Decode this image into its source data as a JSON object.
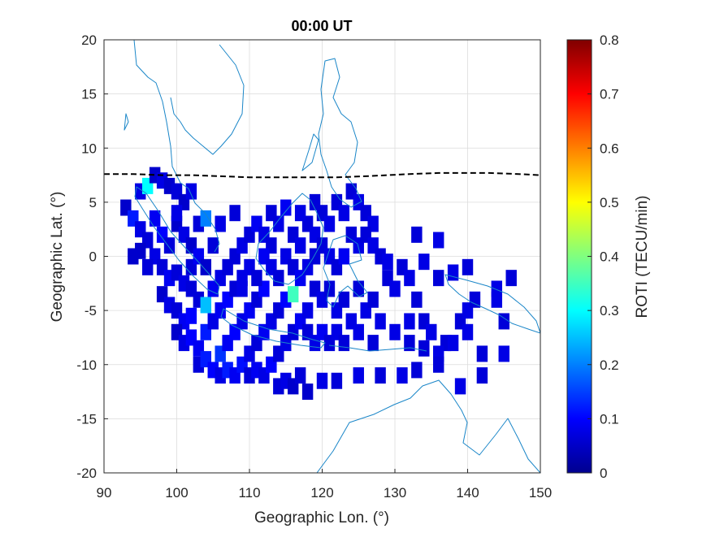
{
  "chart_data": {
    "type": "heatmap",
    "title": "00:00 UT",
    "xlabel": "Geographic Lon. (°)",
    "ylabel": "Geographic Lat. (°)",
    "xlim": [
      90,
      150
    ],
    "ylim": [
      -20,
      20
    ],
    "xticks": [
      "90",
      "100",
      "110",
      "120",
      "130",
      "140",
      "150"
    ],
    "yticks": [
      "20",
      "15",
      "10",
      "5",
      "0",
      "-5",
      "-10",
      "-15",
      "-20"
    ],
    "grid": true,
    "colorbar": {
      "label": "ROTI (TECU/min)",
      "colormap": "jet",
      "range": [
        0,
        0.8
      ],
      "ticks": [
        "0.8",
        "0.7",
        "0.6",
        "0.5",
        "0.4",
        "0.3",
        "0.2",
        "0.1",
        "0"
      ]
    },
    "magnetic_equator_lat": [
      7.6,
      7.6,
      7.5,
      7.5,
      7.4,
      7.3,
      7.3,
      7.3,
      7.3,
      7.4,
      7.5,
      7.6,
      7.7,
      7.7,
      7.7,
      7.6,
      7.5
    ],
    "magnetic_equator_lon": [
      90,
      94,
      98,
      102,
      106,
      110,
      114,
      118,
      122,
      126,
      129,
      132,
      136,
      140,
      143,
      147,
      150
    ],
    "roti_cells": [
      [
        93,
        4.5,
        0.06
      ],
      [
        94,
        3.5,
        0.12
      ],
      [
        95,
        6,
        0.08
      ],
      [
        96,
        6.5,
        0.3
      ],
      [
        97,
        7.5,
        0.06
      ],
      [
        98,
        7,
        0.08
      ],
      [
        99,
        6.5,
        0.06
      ],
      [
        100,
        6,
        0.07
      ],
      [
        101,
        5,
        0.06
      ],
      [
        102,
        6,
        0.08
      ],
      [
        95,
        2.5,
        0.08
      ],
      [
        96,
        1.5,
        0.07
      ],
      [
        97,
        3.5,
        0.09
      ],
      [
        98,
        2,
        0.1
      ],
      [
        99,
        1,
        0.07
      ],
      [
        100,
        3,
        0.06
      ],
      [
        101,
        2,
        0.08
      ],
      [
        102,
        1,
        0.06
      ],
      [
        103,
        3,
        0.07
      ],
      [
        104,
        3.5,
        0.2
      ],
      [
        95,
        0.5,
        0.06
      ],
      [
        97,
        0,
        0.08
      ],
      [
        98,
        -1,
        0.07
      ],
      [
        99,
        -2,
        0.09
      ],
      [
        100,
        -1.5,
        0.07
      ],
      [
        101,
        -2.5,
        0.08
      ],
      [
        102,
        -1,
        0.07
      ],
      [
        103,
        0,
        0.09
      ],
      [
        104,
        -1,
        0.06
      ],
      [
        105,
        1,
        0.07
      ],
      [
        98,
        -3.5,
        0.06
      ],
      [
        99,
        -4.5,
        0.08
      ],
      [
        100,
        -5,
        0.07
      ],
      [
        101,
        -6,
        0.09
      ],
      [
        102,
        -5.5,
        0.1
      ],
      [
        103,
        -4,
        0.07
      ],
      [
        104,
        -4.5,
        0.25
      ],
      [
        105,
        -3,
        0.09
      ],
      [
        106,
        -2,
        0.08
      ],
      [
        107,
        -1,
        0.07
      ],
      [
        100,
        -7,
        0.06
      ],
      [
        101,
        -8,
        0.08
      ],
      [
        102,
        -7.5,
        0.1
      ],
      [
        103,
        -8.5,
        0.09
      ],
      [
        104,
        -7,
        0.12
      ],
      [
        105,
        -6,
        0.08
      ],
      [
        106,
        -5,
        0.09
      ],
      [
        107,
        -4,
        0.1
      ],
      [
        108,
        -3,
        0.07
      ],
      [
        109,
        -2,
        0.08
      ],
      [
        103,
        -10,
        0.07
      ],
      [
        104,
        -9.5,
        0.12
      ],
      [
        105,
        -10.5,
        0.1
      ],
      [
        106,
        -9,
        0.14
      ],
      [
        107,
        -8,
        0.09
      ],
      [
        108,
        -7,
        0.1
      ],
      [
        109,
        -6,
        0.08
      ],
      [
        110,
        -5,
        0.09
      ],
      [
        111,
        -4,
        0.07
      ],
      [
        112,
        -3,
        0.1
      ],
      [
        106,
        -11,
        0.08
      ],
      [
        107,
        -10.5,
        0.12
      ],
      [
        108,
        -11,
        0.09
      ],
      [
        109,
        -10,
        0.11
      ],
      [
        110,
        -9,
        0.08
      ],
      [
        111,
        -8,
        0.07
      ],
      [
        112,
        -7,
        0.09
      ],
      [
        113,
        -6,
        0.08
      ],
      [
        114,
        -5,
        0.07
      ],
      [
        115,
        -4,
        0.1
      ],
      [
        110,
        -11,
        0.07
      ],
      [
        111,
        -10.5,
        0.09
      ],
      [
        112,
        -11,
        0.08
      ],
      [
        113,
        -10,
        0.1
      ],
      [
        114,
        -9,
        0.07
      ],
      [
        115,
        -8,
        0.08
      ],
      [
        116,
        -7,
        0.07
      ],
      [
        117,
        -6,
        0.09
      ],
      [
        118,
        -5,
        0.08
      ],
      [
        116,
        -3.5,
        0.35
      ],
      [
        114,
        -12,
        0.07
      ],
      [
        115,
        -11.5,
        0.08
      ],
      [
        116,
        -12,
        0.06
      ],
      [
        117,
        -11,
        0.07
      ],
      [
        118,
        -12.5,
        0.06
      ],
      [
        120,
        -11.5,
        0.08
      ],
      [
        122,
        -11.5,
        0.07
      ],
      [
        125,
        -11,
        0.08
      ],
      [
        128,
        -11,
        0.07
      ],
      [
        131,
        -11,
        0.08
      ],
      [
        133,
        -10.5,
        0.07
      ],
      [
        108,
        0,
        0.07
      ],
      [
        109,
        1,
        0.08
      ],
      [
        110,
        2,
        0.07
      ],
      [
        111,
        3,
        0.09
      ],
      [
        112,
        2,
        0.08
      ],
      [
        113,
        1,
        0.07
      ],
      [
        114,
        3,
        0.08
      ],
      [
        115,
        4.5,
        0.09
      ],
      [
        116,
        2,
        0.07
      ],
      [
        117,
        1,
        0.08
      ],
      [
        110,
        -1,
        0.08
      ],
      [
        111,
        -2,
        0.07
      ],
      [
        112,
        0,
        0.09
      ],
      [
        113,
        -1,
        0.08
      ],
      [
        114,
        -2,
        0.07
      ],
      [
        115,
        0,
        0.08
      ],
      [
        116,
        -1,
        0.07
      ],
      [
        117,
        -2,
        0.09
      ],
      [
        118,
        -1,
        0.08
      ],
      [
        119,
        0,
        0.07
      ],
      [
        118,
        3,
        0.07
      ],
      [
        119,
        2,
        0.08
      ],
      [
        120,
        4,
        0.07
      ],
      [
        121,
        3,
        0.08
      ],
      [
        122,
        5,
        0.07
      ],
      [
        123,
        4,
        0.08
      ],
      [
        124,
        6,
        0.07
      ],
      [
        125,
        5,
        0.08
      ],
      [
        126,
        4,
        0.07
      ],
      [
        127,
        3,
        0.08
      ],
      [
        120,
        1,
        0.07
      ],
      [
        121,
        0,
        0.08
      ],
      [
        122,
        -1,
        0.07
      ],
      [
        123,
        0,
        0.09
      ],
      [
        124,
        2,
        0.07
      ],
      [
        125,
        1,
        0.08
      ],
      [
        126,
        2,
        0.07
      ],
      [
        127,
        1,
        0.08
      ],
      [
        128,
        0,
        0.07
      ],
      [
        129,
        -0.5,
        0.08
      ],
      [
        119,
        -3,
        0.07
      ],
      [
        120,
        -4,
        0.08
      ],
      [
        121,
        -3,
        0.07
      ],
      [
        122,
        -5,
        0.08
      ],
      [
        123,
        -4,
        0.07
      ],
      [
        124,
        -6,
        0.08
      ],
      [
        125,
        -3,
        0.07
      ],
      [
        126,
        -5,
        0.08
      ],
      [
        127,
        -4,
        0.07
      ],
      [
        128,
        -6,
        0.08
      ],
      [
        118,
        -7,
        0.07
      ],
      [
        119,
        -8,
        0.08
      ],
      [
        120,
        -7,
        0.09
      ],
      [
        121,
        -8,
        0.07
      ],
      [
        122,
        -7,
        0.08
      ],
      [
        123,
        -8,
        0.07
      ],
      [
        125,
        -7,
        0.08
      ],
      [
        127,
        -8,
        0.07
      ],
      [
        130,
        -7,
        0.08
      ],
      [
        132,
        -8,
        0.07
      ],
      [
        129,
        -2,
        0.07
      ],
      [
        130,
        -3,
        0.08
      ],
      [
        131,
        -1,
        0.07
      ],
      [
        132,
        -2,
        0.08
      ],
      [
        133,
        -4,
        0.07
      ],
      [
        132,
        -6,
        0.08
      ],
      [
        134,
        -6,
        0.07
      ],
      [
        135,
        -7,
        0.08
      ],
      [
        137,
        -8,
        0.07
      ],
      [
        136,
        -9,
        0.08
      ],
      [
        134,
        -8.5,
        0.07
      ],
      [
        138,
        -8,
        0.08
      ],
      [
        139,
        -6,
        0.07
      ],
      [
        140,
        -5,
        0.08
      ],
      [
        141,
        -4,
        0.07
      ],
      [
        140,
        -7,
        0.08
      ],
      [
        142,
        -9,
        0.07
      ],
      [
        145,
        -9,
        0.08
      ],
      [
        145,
        -6,
        0.07
      ],
      [
        144,
        -4,
        0.08
      ],
      [
        136,
        -2,
        0.07
      ],
      [
        138,
        -1.5,
        0.08
      ],
      [
        140,
        -1,
        0.07
      ],
      [
        136,
        1.5,
        0.08
      ],
      [
        133,
        2,
        0.07
      ],
      [
        134,
        -0.5,
        0.08
      ],
      [
        136,
        -10,
        0.07
      ],
      [
        139,
        -12,
        0.08
      ],
      [
        142,
        -11,
        0.07
      ],
      [
        144,
        -3,
        0.08
      ],
      [
        146,
        -2,
        0.07
      ],
      [
        94,
        0,
        0.06
      ],
      [
        96,
        -1,
        0.07
      ],
      [
        100,
        4,
        0.08
      ],
      [
        102,
        -3,
        0.07
      ],
      [
        106,
        3,
        0.08
      ],
      [
        108,
        4,
        0.07
      ],
      [
        109,
        -3,
        0.08
      ],
      [
        113,
        4,
        0.07
      ],
      [
        117,
        4,
        0.08
      ],
      [
        119,
        5,
        0.07
      ]
    ]
  }
}
